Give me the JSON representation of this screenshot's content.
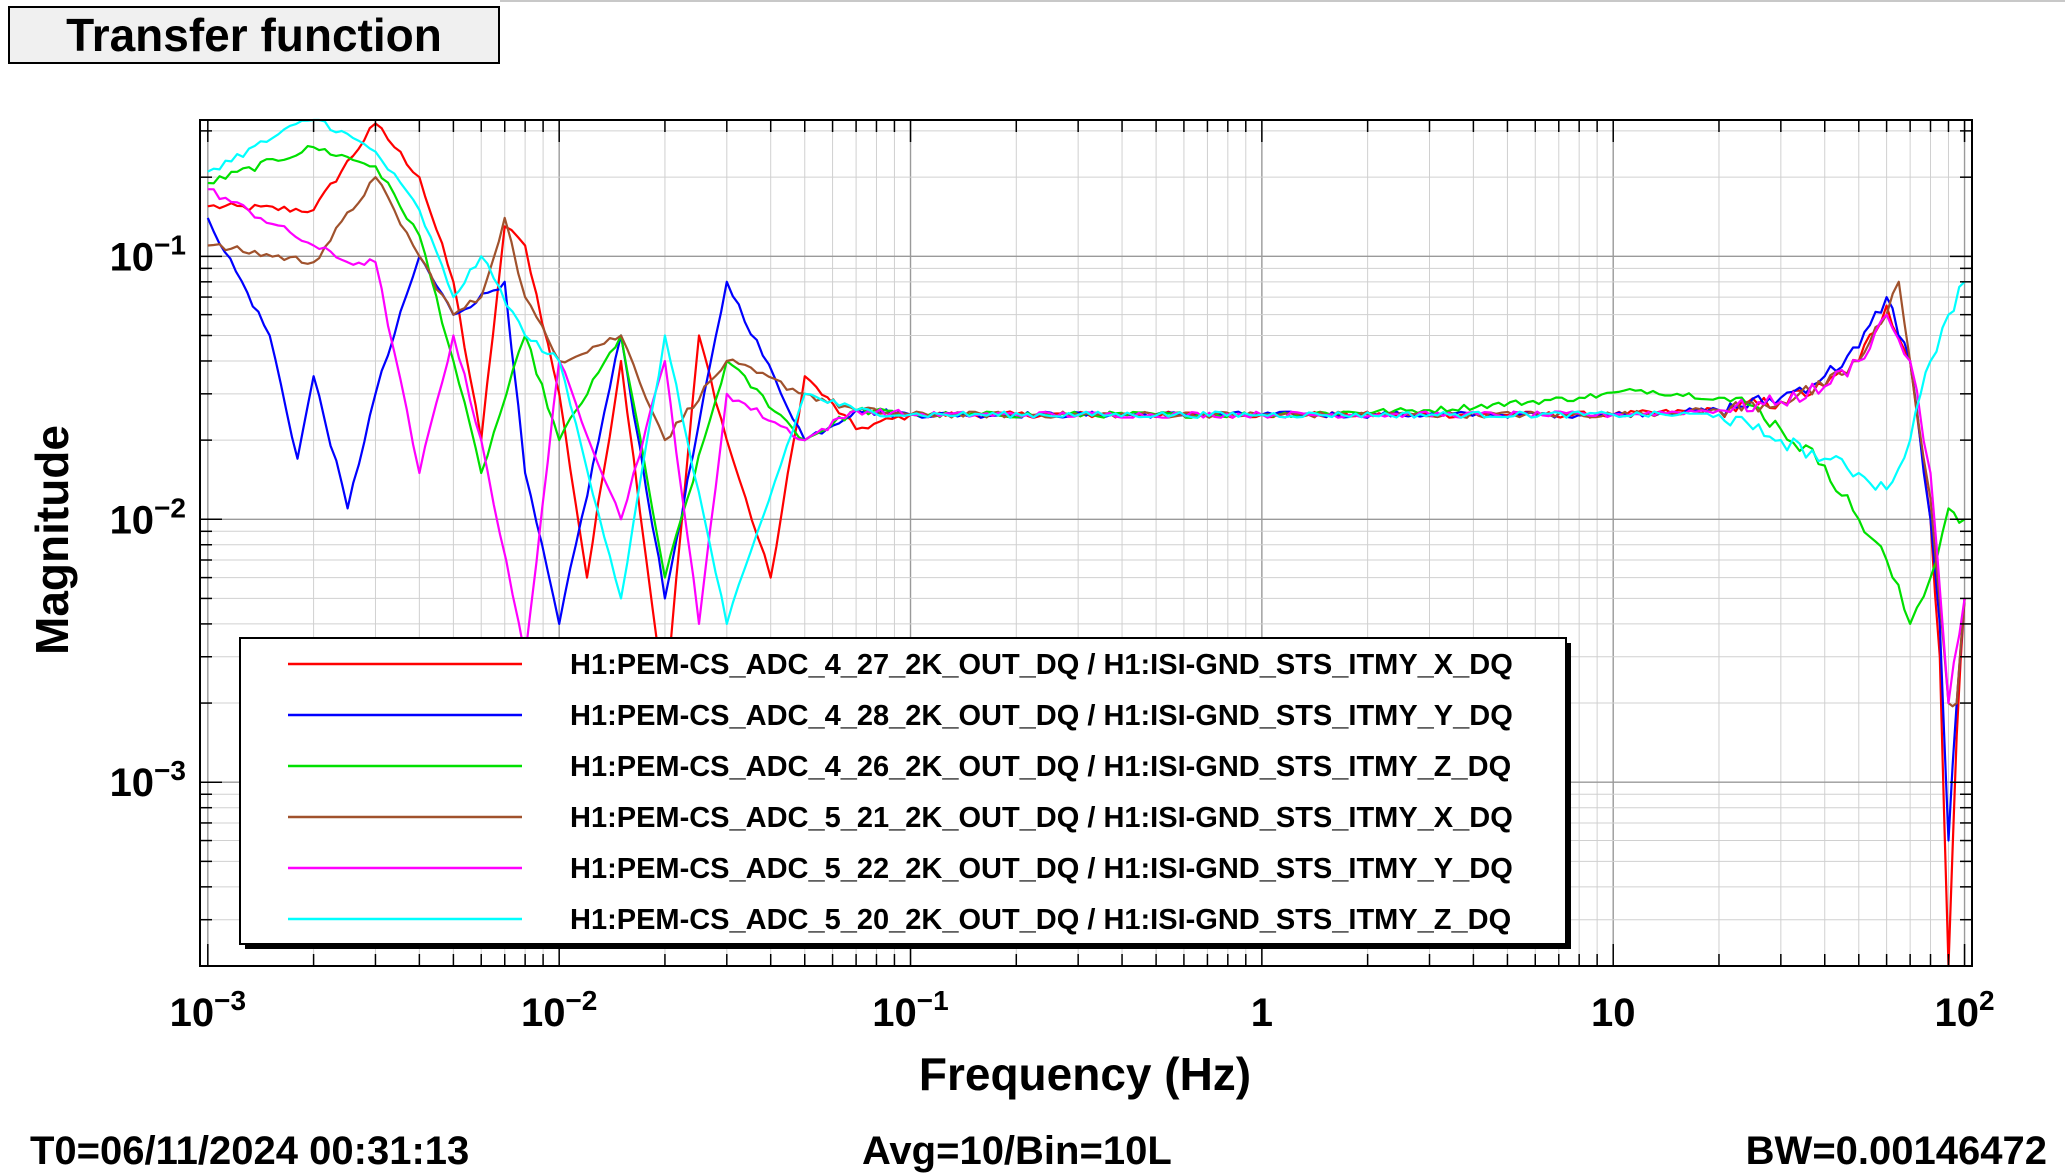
{
  "chart_data": {
    "type": "line",
    "title": "Transfer function",
    "xlabel": "Frequency (Hz)",
    "ylabel": "Magnitude",
    "xscale": "log",
    "yscale": "log",
    "xlim": [
      0.00095,
      105
    ],
    "ylim": [
      0.0002,
      0.33
    ],
    "x_ticks": [
      {
        "value": 0.001,
        "mant": "10",
        "exp": "−3"
      },
      {
        "value": 0.01,
        "mant": "10",
        "exp": "−2"
      },
      {
        "value": 0.1,
        "mant": "10",
        "exp": "−1"
      },
      {
        "value": 1,
        "mant": "1",
        "exp": ""
      },
      {
        "value": 10,
        "mant": "10",
        "exp": ""
      },
      {
        "value": 100,
        "mant": "10",
        "exp": "2"
      }
    ],
    "y_ticks": [
      {
        "value": 0.1,
        "mant": "10",
        "exp": "−1"
      },
      {
        "value": 0.01,
        "mant": "10",
        "exp": "−2"
      },
      {
        "value": 0.001,
        "mant": "10",
        "exp": "−3"
      }
    ],
    "grid": true,
    "legend_position": "bottom-left",
    "series": [
      {
        "name": "H1:PEM-CS_ADC_4_27_2K_OUT_DQ / H1:ISI-GND_STS_ITMY_X_DQ",
        "color": "#ff0000",
        "x": [
          0.001,
          0.002,
          0.003,
          0.004,
          0.005,
          0.006,
          0.007,
          0.008,
          0.01,
          0.012,
          0.015,
          0.02,
          0.025,
          0.03,
          0.04,
          0.05,
          0.07,
          0.1,
          1,
          10,
          20,
          30,
          40,
          50,
          60,
          70,
          80,
          85,
          90,
          95,
          100
        ],
        "y": [
          0.155,
          0.15,
          0.32,
          0.2,
          0.08,
          0.02,
          0.13,
          0.11,
          0.03,
          0.006,
          0.04,
          0.002,
          0.05,
          0.02,
          0.006,
          0.035,
          0.022,
          0.025,
          0.025,
          0.025,
          0.026,
          0.028,
          0.032,
          0.04,
          0.065,
          0.04,
          0.01,
          0.003,
          0.0002,
          0.0015,
          0.005
        ]
      },
      {
        "name": "H1:PEM-CS_ADC_4_28_2K_OUT_DQ / H1:ISI-GND_STS_ITMY_Y_DQ",
        "color": "#0000ff",
        "x": [
          0.001,
          0.0015,
          0.0018,
          0.002,
          0.0025,
          0.003,
          0.004,
          0.005,
          0.007,
          0.008,
          0.01,
          0.015,
          0.02,
          0.03,
          0.05,
          0.07,
          0.1,
          1,
          10,
          20,
          30,
          40,
          50,
          60,
          70,
          80,
          85,
          90,
          95,
          100
        ],
        "y": [
          0.14,
          0.05,
          0.017,
          0.035,
          0.011,
          0.03,
          0.1,
          0.06,
          0.08,
          0.015,
          0.004,
          0.05,
          0.005,
          0.08,
          0.02,
          0.026,
          0.025,
          0.025,
          0.025,
          0.026,
          0.029,
          0.035,
          0.045,
          0.07,
          0.04,
          0.01,
          0.004,
          0.0006,
          0.002,
          0.005
        ]
      },
      {
        "name": "H1:PEM-CS_ADC_4_26_2K_OUT_DQ / H1:ISI-GND_STS_ITMY_Z_DQ",
        "color": "#00e000",
        "x": [
          0.001,
          0.002,
          0.003,
          0.004,
          0.005,
          0.006,
          0.008,
          0.01,
          0.015,
          0.02,
          0.03,
          0.05,
          0.07,
          0.1,
          1,
          3,
          8,
          12,
          20,
          25,
          30,
          40,
          50,
          60,
          70,
          80,
          90,
          100
        ],
        "y": [
          0.19,
          0.26,
          0.22,
          0.12,
          0.04,
          0.015,
          0.05,
          0.02,
          0.05,
          0.006,
          0.04,
          0.02,
          0.026,
          0.025,
          0.025,
          0.026,
          0.029,
          0.031,
          0.029,
          0.027,
          0.022,
          0.016,
          0.01,
          0.007,
          0.004,
          0.006,
          0.011,
          0.01
        ]
      },
      {
        "name": "H1:PEM-CS_ADC_5_21_2K_OUT_DQ / H1:ISI-GND_STS_ITMY_X_DQ",
        "color": "#a0522d",
        "x": [
          0.001,
          0.002,
          0.003,
          0.004,
          0.005,
          0.006,
          0.007,
          0.008,
          0.01,
          0.015,
          0.02,
          0.03,
          0.05,
          0.07,
          0.1,
          1,
          10,
          20,
          30,
          40,
          50,
          60,
          65,
          70,
          80,
          90,
          95,
          100
        ],
        "y": [
          0.11,
          0.095,
          0.2,
          0.1,
          0.06,
          0.07,
          0.14,
          0.07,
          0.04,
          0.05,
          0.02,
          0.04,
          0.03,
          0.026,
          0.025,
          0.025,
          0.025,
          0.026,
          0.028,
          0.032,
          0.04,
          0.06,
          0.08,
          0.04,
          0.012,
          0.002,
          0.002,
          0.005
        ]
      },
      {
        "name": "H1:PEM-CS_ADC_5_22_2K_OUT_DQ / H1:ISI-GND_STS_ITMY_Y_DQ",
        "color": "#ff00ff",
        "x": [
          0.001,
          0.002,
          0.0025,
          0.003,
          0.004,
          0.005,
          0.006,
          0.008,
          0.01,
          0.015,
          0.02,
          0.025,
          0.03,
          0.05,
          0.07,
          0.1,
          1,
          10,
          20,
          30,
          40,
          50,
          60,
          70,
          80,
          90,
          100
        ],
        "y": [
          0.18,
          0.11,
          0.095,
          0.095,
          0.015,
          0.05,
          0.02,
          0.003,
          0.04,
          0.01,
          0.04,
          0.004,
          0.03,
          0.02,
          0.026,
          0.025,
          0.025,
          0.025,
          0.026,
          0.028,
          0.032,
          0.04,
          0.06,
          0.04,
          0.015,
          0.002,
          0.005
        ]
      },
      {
        "name": "H1:PEM-CS_ADC_5_20_2K_OUT_DQ / H1:ISI-GND_STS_ITMY_Z_DQ",
        "color": "#00ffff",
        "x": [
          0.001,
          0.002,
          0.003,
          0.004,
          0.005,
          0.006,
          0.008,
          0.01,
          0.015,
          0.02,
          0.03,
          0.05,
          0.07,
          0.1,
          1,
          10,
          20,
          25,
          30,
          40,
          50,
          60,
          70,
          75,
          80,
          90,
          100
        ],
        "y": [
          0.21,
          0.34,
          0.25,
          0.15,
          0.07,
          0.1,
          0.05,
          0.04,
          0.005,
          0.05,
          0.004,
          0.03,
          0.026,
          0.025,
          0.025,
          0.025,
          0.025,
          0.022,
          0.02,
          0.017,
          0.015,
          0.013,
          0.02,
          0.03,
          0.04,
          0.06,
          0.08
        ]
      }
    ]
  },
  "footer": {
    "t0": "T0=06/11/2024 00:31:13",
    "avg": "Avg=10/Bin=10L",
    "bw": "BW=0.00146472"
  }
}
